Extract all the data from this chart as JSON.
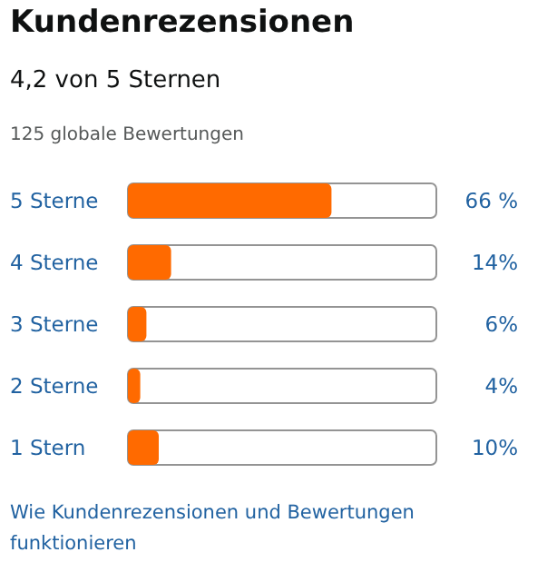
{
  "chart_data": {
    "type": "bar",
    "orientation": "horizontal",
    "title": "Kundenrezensionen",
    "subtitle": "4,2 von 5 Sternen",
    "categories": [
      "5 Sterne",
      "4 Sterne",
      "3 Sterne",
      "2 Sterne",
      "1 Stern"
    ],
    "values": [
      66,
      14,
      6,
      4,
      10
    ],
    "value_labels": [
      "66 %",
      "14%",
      "6%",
      "4%",
      "10%"
    ],
    "color": "#ff6a00",
    "xlim": [
      0,
      100
    ],
    "tick_labels": false,
    "grid": false,
    "annotations": [
      "125 globale Bewertungen",
      "Wie Kundenrezensionen und Bewertungen funktionieren"
    ]
  }
}
